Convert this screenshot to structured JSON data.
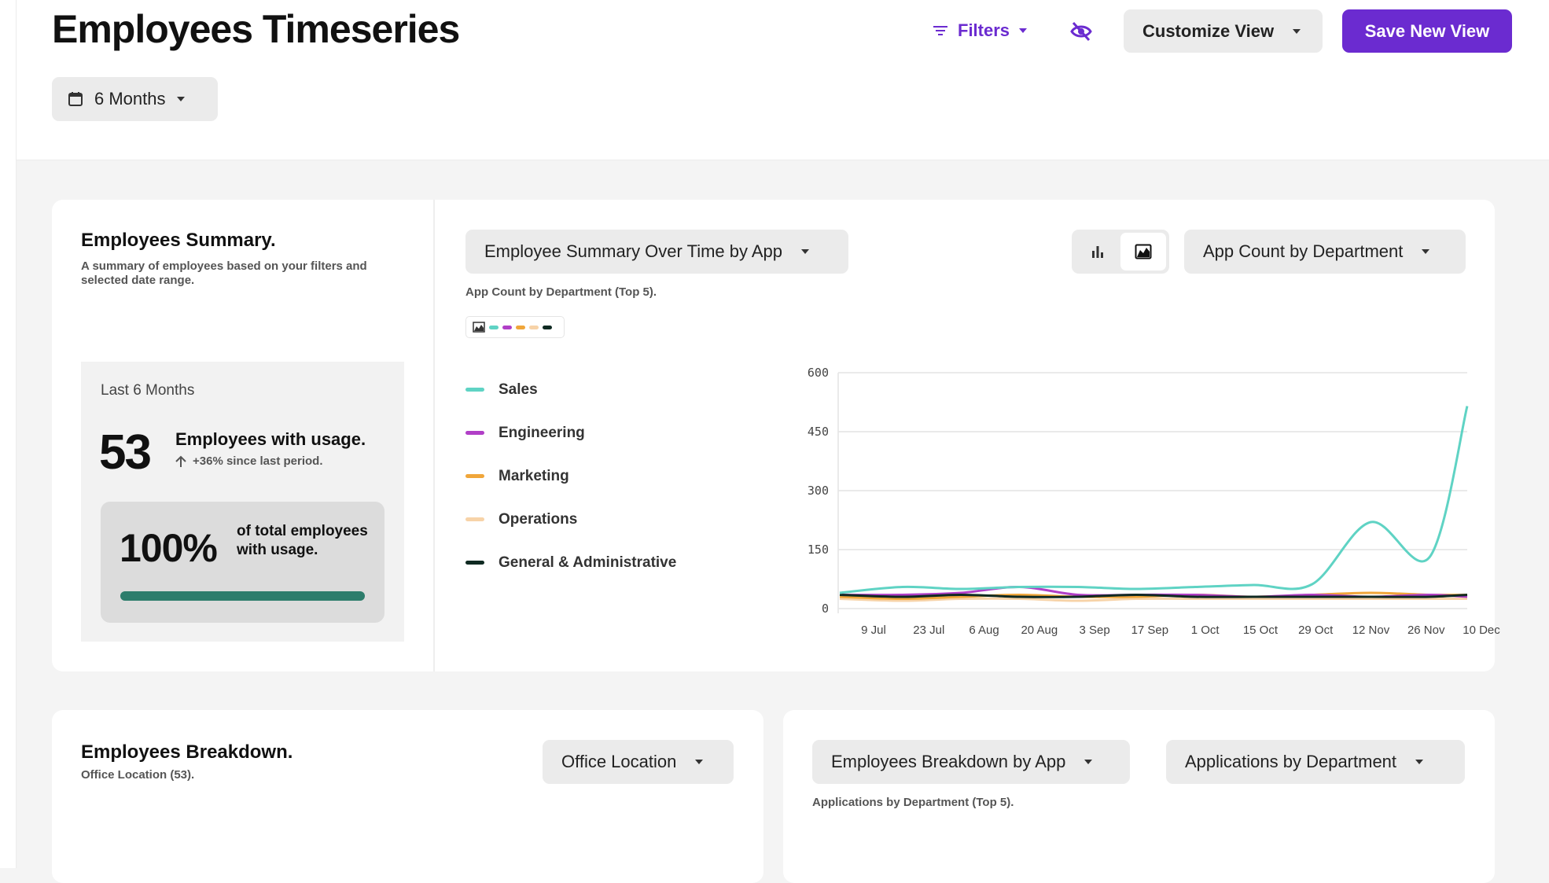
{
  "header": {
    "title": "Employees Timeseries",
    "filters_label": "Filters",
    "customize_label": "Customize View",
    "save_label": "Save New View",
    "date_range_label": "6 Months"
  },
  "summary": {
    "title": "Employees Summary.",
    "description": "A summary of employees based on your filters and selected date range.",
    "period_label": "Last 6 Months",
    "count": "53",
    "count_label": "Employees with usage.",
    "delta_label": "+36% since last period.",
    "percent": "100%",
    "percent_label": "of total employees with usage.",
    "percent_fraction": 1.0
  },
  "timeseries": {
    "view_dropdown": "Employee Summary Over Time by App",
    "metric_dropdown": "App Count by Department",
    "subtitle": "App Count by Department (Top 5)."
  },
  "chart_data": {
    "type": "line",
    "title": "",
    "xlabel": "",
    "ylabel": "",
    "ylim": [
      0,
      600
    ],
    "yticks": [
      0,
      150,
      300,
      450,
      600
    ],
    "x": [
      "9 Jul",
      "23 Jul",
      "6 Aug",
      "20 Aug",
      "3 Sep",
      "17 Sep",
      "1 Oct",
      "15 Oct",
      "29 Oct",
      "12 Nov",
      "26 Nov",
      "10 Dec"
    ],
    "legend_position": "left",
    "grid": true,
    "series": [
      {
        "name": "Sales",
        "color": "#5fd3c4",
        "values": [
          40,
          55,
          50,
          55,
          55,
          50,
          55,
          60,
          62,
          220,
          130,
          515
        ]
      },
      {
        "name": "Engineering",
        "color": "#b13fc7",
        "values": [
          35,
          35,
          40,
          55,
          35,
          35,
          35,
          30,
          35,
          30,
          35,
          30
        ]
      },
      {
        "name": "Marketing",
        "color": "#f0a63a",
        "values": [
          30,
          25,
          30,
          35,
          30,
          30,
          35,
          30,
          35,
          40,
          35,
          35
        ]
      },
      {
        "name": "Operations",
        "color": "#f7d3a8",
        "values": [
          25,
          20,
          25,
          25,
          20,
          25,
          25,
          25,
          25,
          25,
          25,
          25
        ]
      },
      {
        "name": "General & Administrative",
        "color": "#0f2a22",
        "values": [
          35,
          30,
          35,
          30,
          30,
          35,
          30,
          30,
          30,
          30,
          30,
          35
        ]
      }
    ]
  },
  "breakdown": {
    "title": "Employees Breakdown.",
    "subtitle": "Office Location (53).",
    "location_dropdown": "Office Location"
  },
  "apps_breakdown": {
    "view_dropdown": "Employees Breakdown by App",
    "metric_dropdown": "Applications by Department",
    "subtitle": "Applications by Department (Top 5)."
  },
  "icons": {
    "filter": "filter-icon",
    "hide": "eye-off-icon",
    "calendar": "calendar-icon",
    "bar_chart": "bar-chart-icon",
    "area_chart": "area-chart-icon",
    "arrow_up": "arrow-up-icon"
  }
}
